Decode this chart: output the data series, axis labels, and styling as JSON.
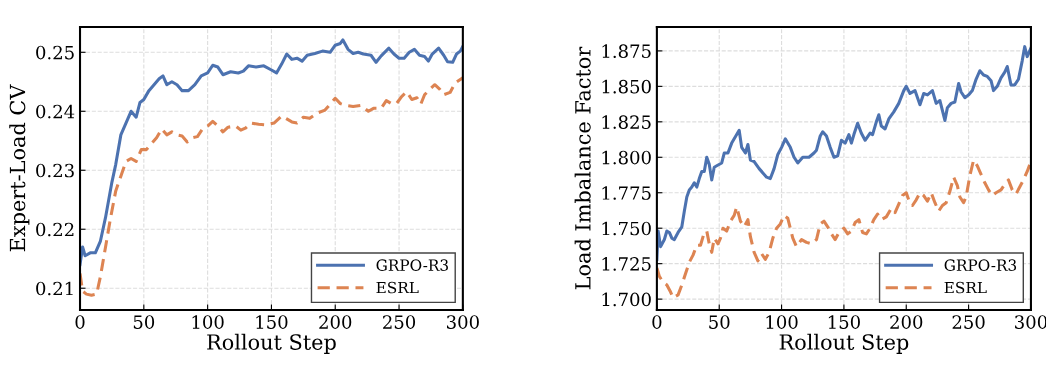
{
  "chart_data": [
    {
      "type": "line",
      "xlabel": "Rollout Step",
      "ylabel": "Expert-Load CV",
      "xlim": [
        0,
        300
      ],
      "ylim": [
        0.2063,
        0.2543
      ],
      "xticks": [
        0,
        50,
        100,
        150,
        200,
        250,
        300
      ],
      "yticks": [
        0.21,
        0.22,
        0.23,
        0.24,
        0.25
      ],
      "grid": true,
      "legend": "bottom right",
      "marker": "none",
      "series": [
        {
          "name": "GRPO-R3",
          "color": "#4c72b0",
          "line_style": "solid",
          "x": [
            0,
            2,
            4,
            8,
            12,
            16,
            20,
            25,
            28,
            32,
            36,
            40,
            44,
            47,
            50,
            54,
            58,
            62,
            65,
            68,
            72,
            76,
            80,
            85,
            90,
            95,
            100,
            104,
            108,
            112,
            118,
            124,
            128,
            132,
            138,
            144,
            150,
            154,
            158,
            162,
            166,
            170,
            174,
            178,
            184,
            190,
            196,
            200,
            204,
            206,
            210,
            214,
            218,
            222,
            228,
            232,
            236,
            242,
            246,
            250,
            254,
            258,
            262,
            266,
            270,
            273,
            276,
            281,
            285,
            288,
            292,
            295,
            298,
            300
          ],
          "values": [
            0.214,
            0.217,
            0.2155,
            0.216,
            0.216,
            0.218,
            0.222,
            0.228,
            0.231,
            0.236,
            0.238,
            0.24,
            0.239,
            0.2415,
            0.242,
            0.2435,
            0.2445,
            0.2455,
            0.246,
            0.2445,
            0.245,
            0.2445,
            0.2435,
            0.2435,
            0.2445,
            0.246,
            0.2465,
            0.2478,
            0.2475,
            0.2462,
            0.2467,
            0.2465,
            0.2468,
            0.2477,
            0.2475,
            0.2477,
            0.247,
            0.2465,
            0.248,
            0.2497,
            0.2488,
            0.249,
            0.2485,
            0.2495,
            0.2498,
            0.2502,
            0.25,
            0.2512,
            0.2515,
            0.2521,
            0.2505,
            0.2498,
            0.25,
            0.2497,
            0.2495,
            0.2483,
            0.2494,
            0.2507,
            0.2497,
            0.249,
            0.249,
            0.25,
            0.2505,
            0.2495,
            0.2493,
            0.2485,
            0.2497,
            0.2507,
            0.2495,
            0.2484,
            0.2483,
            0.2497,
            0.2502,
            0.251
          ]
        },
        {
          "name": "ESRL",
          "color": "#dd8452",
          "line_style": "dashed",
          "x": [
            0,
            2,
            5,
            9,
            13,
            16,
            20,
            24,
            28,
            32,
            36,
            40,
            44,
            48,
            52,
            56,
            60,
            64,
            68,
            72,
            76,
            80,
            84,
            88,
            92,
            96,
            100,
            104,
            108,
            112,
            116,
            122,
            126,
            130,
            134,
            140,
            146,
            152,
            158,
            162,
            166,
            170,
            175,
            180,
            186,
            192,
            196,
            200,
            204,
            208,
            214,
            220,
            226,
            230,
            236,
            240,
            244,
            248,
            252,
            256,
            260,
            264,
            267,
            270,
            274,
            278,
            282,
            285,
            290,
            294,
            300
          ],
          "values": [
            0.2125,
            0.2095,
            0.209,
            0.2088,
            0.209,
            0.212,
            0.217,
            0.222,
            0.2265,
            0.229,
            0.2315,
            0.232,
            0.2315,
            0.2335,
            0.2335,
            0.2345,
            0.2355,
            0.237,
            0.236,
            0.2365,
            0.236,
            0.2358,
            0.2348,
            0.2355,
            0.2357,
            0.237,
            0.2375,
            0.2383,
            0.2375,
            0.2365,
            0.2373,
            0.2375,
            0.2368,
            0.2372,
            0.238,
            0.2378,
            0.2377,
            0.238,
            0.2392,
            0.2387,
            0.2382,
            0.238,
            0.239,
            0.2388,
            0.2397,
            0.2402,
            0.2412,
            0.2422,
            0.2413,
            0.241,
            0.2408,
            0.241,
            0.24,
            0.2405,
            0.2405,
            0.2418,
            0.2413,
            0.2413,
            0.2425,
            0.2433,
            0.242,
            0.2423,
            0.2412,
            0.2428,
            0.2437,
            0.2445,
            0.2437,
            0.2428,
            0.2432,
            0.2448,
            0.2457
          ]
        }
      ]
    },
    {
      "type": "line",
      "xlabel": "Rollout Step",
      "ylabel": "Load Imbalance Factor",
      "xlim": [
        0,
        300
      ],
      "ylim": [
        1.6923,
        1.8919
      ],
      "xticks": [
        0,
        50,
        100,
        150,
        200,
        250,
        300
      ],
      "yticks": [
        {
          "value": 1.7,
          "label": "1.700"
        },
        {
          "value": 1.725,
          "label": "1.725"
        },
        {
          "value": 1.75,
          "label": "1.750"
        },
        {
          "value": 1.775,
          "label": "1.775"
        },
        {
          "value": 1.8,
          "label": "1.800"
        },
        {
          "value": 1.825,
          "label": "1.825"
        },
        {
          "value": 1.85,
          "label": "1.850"
        },
        {
          "value": 1.875,
          "label": "1.875"
        }
      ],
      "grid": true,
      "legend": "bottom right",
      "marker": "none",
      "series": [
        {
          "name": "GRPO-R3",
          "color": "#4c72b0",
          "line_style": "solid",
          "x": [
            0,
            1,
            3,
            6,
            8,
            10,
            12,
            14,
            17,
            20,
            22,
            24,
            26,
            28,
            30,
            32,
            34,
            36,
            38,
            40,
            42,
            44,
            46,
            48,
            52,
            54,
            57,
            60,
            64,
            66,
            68,
            71,
            73,
            75,
            78,
            82,
            85,
            88,
            91,
            94,
            97,
            100,
            103,
            107,
            110,
            113,
            117,
            122,
            126,
            128,
            131,
            133,
            136,
            139,
            142,
            145,
            148,
            151,
            154,
            156,
            158,
            161,
            164,
            167,
            171,
            173,
            176,
            178,
            180,
            183,
            186,
            190,
            194,
            198,
            200,
            203,
            207,
            211,
            214,
            217,
            221,
            224,
            227,
            231,
            233,
            236,
            239,
            242,
            244,
            247,
            250,
            253,
            256,
            259,
            262,
            265,
            268,
            270,
            273,
            276,
            279,
            281,
            284,
            287,
            290,
            293,
            295,
            297,
            300
          ],
          "values": [
            1.728,
            1.748,
            1.737,
            1.742,
            1.748,
            1.747,
            1.743,
            1.742,
            1.747,
            1.751,
            1.762,
            1.772,
            1.777,
            1.779,
            1.782,
            1.779,
            1.785,
            1.79,
            1.79,
            1.8,
            1.795,
            1.784,
            1.793,
            1.794,
            1.796,
            1.803,
            1.803,
            1.81,
            1.816,
            1.819,
            1.807,
            1.803,
            1.809,
            1.798,
            1.797,
            1.792,
            1.789,
            1.786,
            1.785,
            1.792,
            1.802,
            1.807,
            1.813,
            1.807,
            1.8,
            1.796,
            1.8,
            1.8,
            1.803,
            1.805,
            1.815,
            1.818,
            1.815,
            1.807,
            1.8,
            1.801,
            1.812,
            1.81,
            1.816,
            1.81,
            1.816,
            1.824,
            1.817,
            1.812,
            1.817,
            1.816,
            1.825,
            1.83,
            1.822,
            1.82,
            1.827,
            1.832,
            1.838,
            1.847,
            1.85,
            1.845,
            1.847,
            1.837,
            1.845,
            1.844,
            1.847,
            1.838,
            1.84,
            1.826,
            1.835,
            1.838,
            1.839,
            1.852,
            1.846,
            1.842,
            1.844,
            1.847,
            1.855,
            1.861,
            1.858,
            1.857,
            1.854,
            1.847,
            1.85,
            1.856,
            1.86,
            1.864,
            1.851,
            1.851,
            1.855,
            1.868,
            1.878,
            1.871,
            1.877
          ]
        },
        {
          "name": "ESRL",
          "color": "#dd8452",
          "line_style": "dashed",
          "x": [
            0,
            2,
            5,
            8,
            11,
            13,
            17,
            20,
            23,
            26,
            29,
            32,
            35,
            38,
            40,
            42,
            44,
            46,
            49,
            51,
            53,
            56,
            59,
            62,
            64,
            67,
            70,
            73,
            75,
            78,
            81,
            84,
            87,
            90,
            93,
            96,
            99,
            102,
            105,
            109,
            112,
            116,
            120,
            124,
            128,
            131,
            134,
            137,
            140,
            143,
            146,
            150,
            153,
            156,
            159,
            162,
            165,
            168,
            171,
            174,
            177,
            180,
            184,
            188,
            191,
            194,
            197,
            200,
            202,
            205,
            208,
            211,
            214,
            217,
            220,
            223,
            226,
            229,
            232,
            235,
            238,
            241,
            243,
            246,
            248,
            251,
            254,
            257,
            260,
            263,
            266,
            269,
            272,
            276,
            279,
            282,
            285,
            288,
            291,
            294,
            297,
            300
          ],
          "values": [
            1.722,
            1.716,
            1.712,
            1.71,
            1.705,
            1.701,
            1.703,
            1.71,
            1.718,
            1.726,
            1.731,
            1.738,
            1.738,
            1.747,
            1.748,
            1.739,
            1.733,
            1.743,
            1.739,
            1.743,
            1.75,
            1.748,
            1.755,
            1.759,
            1.765,
            1.755,
            1.751,
            1.756,
            1.744,
            1.733,
            1.727,
            1.732,
            1.728,
            1.733,
            1.743,
            1.75,
            1.753,
            1.759,
            1.757,
            1.743,
            1.737,
            1.742,
            1.74,
            1.739,
            1.742,
            1.753,
            1.755,
            1.751,
            1.746,
            1.742,
            1.747,
            1.75,
            1.746,
            1.748,
            1.754,
            1.756,
            1.747,
            1.746,
            1.75,
            1.756,
            1.76,
            1.756,
            1.758,
            1.764,
            1.761,
            1.767,
            1.773,
            1.775,
            1.77,
            1.766,
            1.77,
            1.775,
            1.773,
            1.769,
            1.775,
            1.768,
            1.762,
            1.766,
            1.768,
            1.776,
            1.786,
            1.78,
            1.772,
            1.768,
            1.772,
            1.787,
            1.798,
            1.794,
            1.788,
            1.782,
            1.777,
            1.773,
            1.775,
            1.777,
            1.781,
            1.784,
            1.777,
            1.774,
            1.779,
            1.784,
            1.79,
            1.797
          ]
        }
      ]
    }
  ]
}
